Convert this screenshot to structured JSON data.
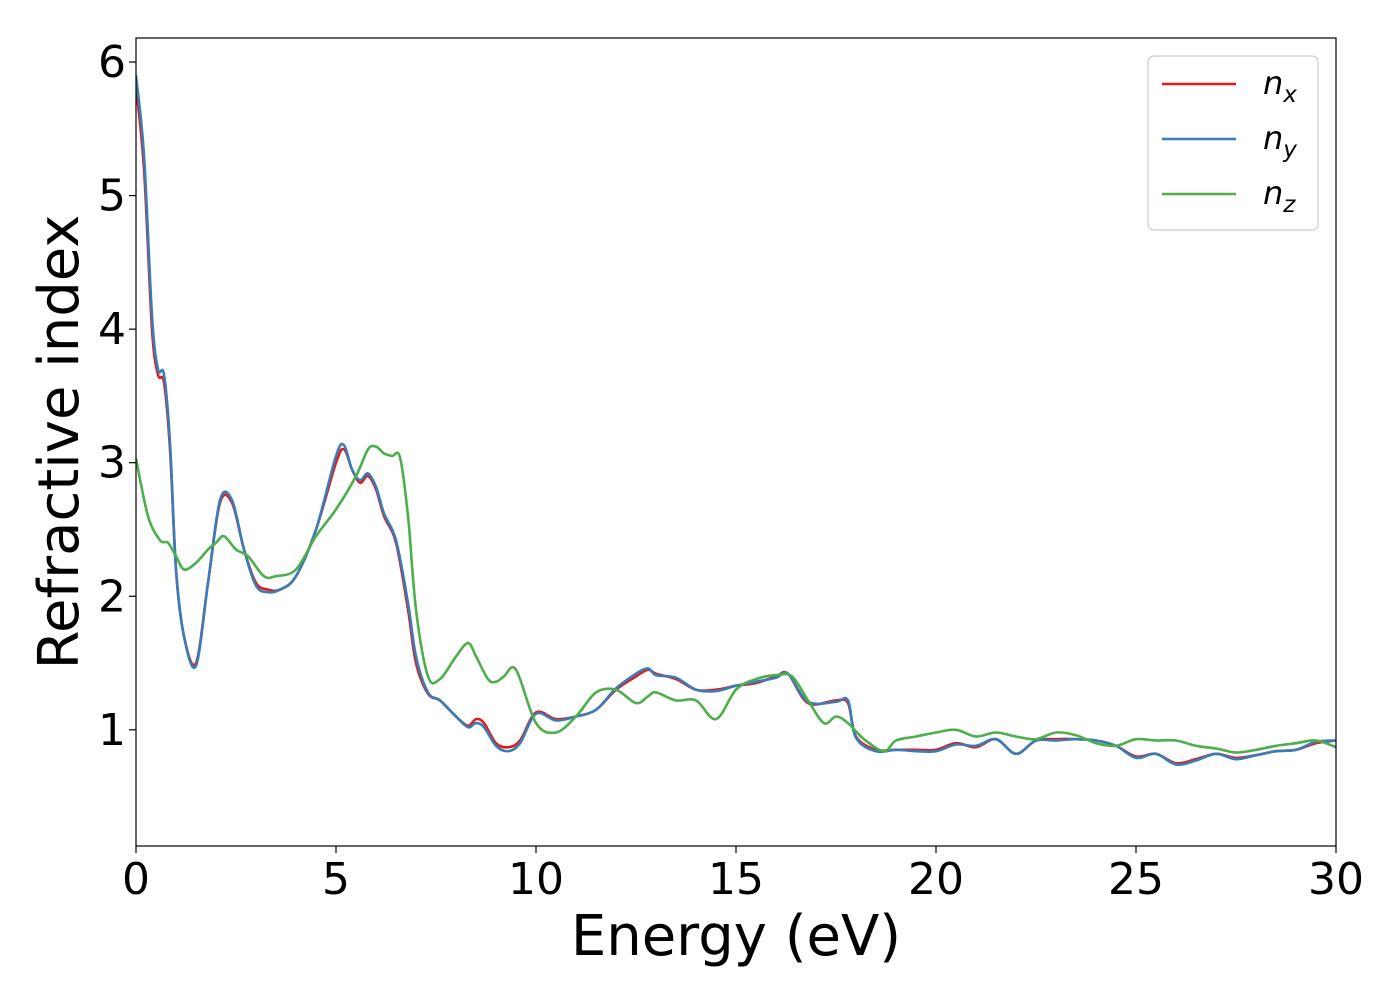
{
  "chart_data": {
    "type": "line",
    "title": "",
    "xlabel": "Energy (eV)",
    "ylabel": "Refractive index",
    "xlim": [
      0,
      30
    ],
    "ylim": [
      0.13,
      6.18
    ],
    "xticks": [
      0,
      5,
      10,
      15,
      20,
      25,
      30
    ],
    "yticks": [
      1,
      2,
      3,
      4,
      5,
      6
    ],
    "grid": false,
    "legend_position": "top-right",
    "series": [
      {
        "name": "n",
        "subscript": "x",
        "color": "#e41a1c",
        "x": [
          0,
          0.2,
          0.4,
          0.55,
          0.7,
          0.85,
          1.0,
          1.2,
          1.5,
          1.8,
          2.1,
          2.4,
          2.7,
          3.0,
          3.3,
          3.6,
          4.0,
          4.5,
          5.0,
          5.2,
          5.4,
          5.6,
          5.8,
          6.0,
          6.2,
          6.5,
          6.8,
          7.0,
          7.3,
          7.6,
          8.0,
          8.3,
          8.5,
          8.7,
          9.0,
          9.3,
          9.6,
          10.0,
          10.5,
          11.0,
          11.5,
          12.0,
          12.5,
          12.8,
          13.0,
          13.5,
          14.0,
          14.5,
          15.0,
          15.5,
          16.0,
          16.3,
          16.8,
          17.5,
          17.8,
          18.0,
          18.5,
          19.0,
          19.5,
          20.0,
          20.5,
          21.0,
          21.5,
          22.0,
          22.5,
          23.0,
          23.5,
          24.0,
          24.5,
          25.0,
          25.5,
          26.0,
          26.5,
          27.0,
          27.5,
          28.0,
          28.5,
          29.0,
          29.5,
          30.0
        ],
        "y": [
          5.82,
          5.2,
          4.0,
          3.66,
          3.6,
          3.1,
          2.2,
          1.7,
          1.5,
          2.1,
          2.7,
          2.7,
          2.35,
          2.1,
          2.05,
          2.05,
          2.15,
          2.5,
          3.0,
          3.1,
          2.95,
          2.85,
          2.9,
          2.8,
          2.6,
          2.4,
          1.9,
          1.5,
          1.27,
          1.22,
          1.1,
          1.03,
          1.08,
          1.05,
          0.9,
          0.87,
          0.92,
          1.13,
          1.08,
          1.1,
          1.15,
          1.3,
          1.4,
          1.45,
          1.42,
          1.38,
          1.3,
          1.3,
          1.33,
          1.35,
          1.4,
          1.42,
          1.2,
          1.22,
          1.2,
          0.95,
          0.85,
          0.85,
          0.85,
          0.85,
          0.9,
          0.87,
          0.93,
          0.82,
          0.92,
          0.93,
          0.93,
          0.92,
          0.88,
          0.8,
          0.82,
          0.75,
          0.78,
          0.82,
          0.79,
          0.81,
          0.84,
          0.85,
          0.9,
          0.92
        ]
      },
      {
        "name": "n",
        "subscript": "y",
        "color": "#377eb8",
        "x": [
          0,
          0.2,
          0.4,
          0.55,
          0.7,
          0.85,
          1.0,
          1.2,
          1.5,
          1.8,
          2.1,
          2.4,
          2.7,
          3.0,
          3.3,
          3.6,
          4.0,
          4.5,
          5.0,
          5.2,
          5.4,
          5.6,
          5.8,
          6.0,
          6.2,
          6.5,
          6.8,
          7.0,
          7.3,
          7.6,
          8.0,
          8.3,
          8.5,
          8.7,
          9.0,
          9.3,
          9.6,
          10.0,
          10.5,
          11.0,
          11.5,
          12.0,
          12.5,
          12.8,
          13.0,
          13.5,
          14.0,
          14.5,
          15.0,
          15.5,
          16.0,
          16.3,
          16.8,
          17.5,
          17.8,
          18.0,
          18.5,
          19.0,
          19.5,
          20.0,
          20.5,
          21.0,
          21.5,
          22.0,
          22.5,
          23.0,
          23.5,
          24.0,
          24.5,
          25.0,
          25.5,
          26.0,
          26.5,
          27.0,
          27.5,
          28.0,
          28.5,
          29.0,
          29.5,
          30.0
        ],
        "y": [
          5.9,
          5.3,
          4.1,
          3.7,
          3.66,
          3.15,
          2.2,
          1.7,
          1.48,
          2.1,
          2.72,
          2.72,
          2.35,
          2.08,
          2.03,
          2.05,
          2.15,
          2.5,
          3.05,
          3.13,
          2.95,
          2.87,
          2.92,
          2.82,
          2.62,
          2.42,
          1.95,
          1.55,
          1.28,
          1.22,
          1.1,
          1.02,
          1.05,
          1.02,
          0.88,
          0.84,
          0.9,
          1.12,
          1.07,
          1.1,
          1.15,
          1.31,
          1.42,
          1.46,
          1.41,
          1.39,
          1.3,
          1.29,
          1.33,
          1.36,
          1.39,
          1.42,
          1.21,
          1.21,
          1.22,
          0.94,
          0.84,
          0.85,
          0.84,
          0.84,
          0.89,
          0.88,
          0.93,
          0.82,
          0.92,
          0.92,
          0.93,
          0.92,
          0.88,
          0.79,
          0.82,
          0.74,
          0.77,
          0.82,
          0.78,
          0.81,
          0.84,
          0.85,
          0.91,
          0.92
        ]
      },
      {
        "name": "n",
        "subscript": "z",
        "color": "#4daf4a",
        "x": [
          0,
          0.3,
          0.6,
          0.8,
          1.0,
          1.2,
          1.5,
          1.8,
          2.0,
          2.2,
          2.5,
          2.8,
          3.2,
          3.5,
          4.0,
          4.5,
          5.0,
          5.5,
          5.8,
          6.0,
          6.2,
          6.4,
          6.6,
          6.8,
          7.0,
          7.3,
          7.6,
          8.0,
          8.3,
          8.5,
          8.8,
          9.0,
          9.2,
          9.5,
          10.0,
          10.5,
          11.0,
          11.5,
          12.0,
          12.5,
          12.8,
          13.0,
          13.5,
          14.0,
          14.5,
          15.0,
          15.5,
          16.0,
          16.4,
          16.8,
          17.2,
          17.5,
          17.8,
          18.2,
          18.7,
          19.0,
          19.5,
          20.0,
          20.5,
          21.0,
          21.5,
          22.0,
          22.5,
          23.0,
          23.5,
          24.0,
          24.5,
          25.0,
          25.5,
          26.0,
          26.5,
          27.0,
          27.5,
          28.0,
          28.5,
          29.0,
          29.5,
          30.0
        ],
        "y": [
          3.03,
          2.6,
          2.42,
          2.4,
          2.3,
          2.2,
          2.25,
          2.35,
          2.4,
          2.45,
          2.35,
          2.3,
          2.15,
          2.15,
          2.2,
          2.45,
          2.65,
          2.9,
          3.1,
          3.12,
          3.07,
          3.05,
          3.04,
          2.6,
          1.9,
          1.4,
          1.38,
          1.55,
          1.65,
          1.55,
          1.38,
          1.36,
          1.4,
          1.45,
          1.05,
          0.98,
          1.1,
          1.28,
          1.3,
          1.2,
          1.25,
          1.28,
          1.22,
          1.22,
          1.08,
          1.3,
          1.38,
          1.41,
          1.4,
          1.22,
          1.05,
          1.1,
          1.05,
          0.93,
          0.84,
          0.92,
          0.95,
          0.98,
          1.0,
          0.95,
          0.98,
          0.95,
          0.93,
          0.98,
          0.96,
          0.9,
          0.88,
          0.93,
          0.92,
          0.92,
          0.88,
          0.86,
          0.83,
          0.85,
          0.88,
          0.9,
          0.92,
          0.87
        ]
      }
    ]
  }
}
